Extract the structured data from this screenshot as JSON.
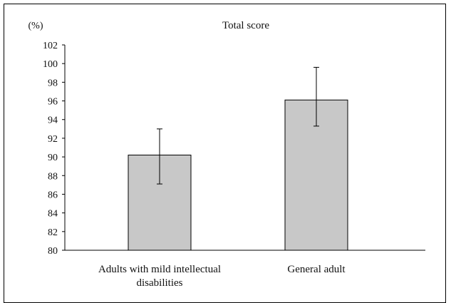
{
  "chart_data": {
    "type": "bar",
    "title": "Total score",
    "ylabel": "(%)",
    "xlabel": "",
    "ylim": [
      80,
      102
    ],
    "yticks": [
      80,
      82,
      84,
      86,
      88,
      90,
      92,
      94,
      96,
      98,
      100,
      102
    ],
    "categories": [
      [
        "Adults with mild intellectual",
        "disabilities"
      ],
      [
        "General adult"
      ]
    ],
    "values": [
      90.2,
      96.1
    ],
    "error_low": [
      87.1,
      93.3
    ],
    "error_high": [
      93.0,
      99.6
    ],
    "bar_color": "#c8c8c8",
    "grid": false
  }
}
